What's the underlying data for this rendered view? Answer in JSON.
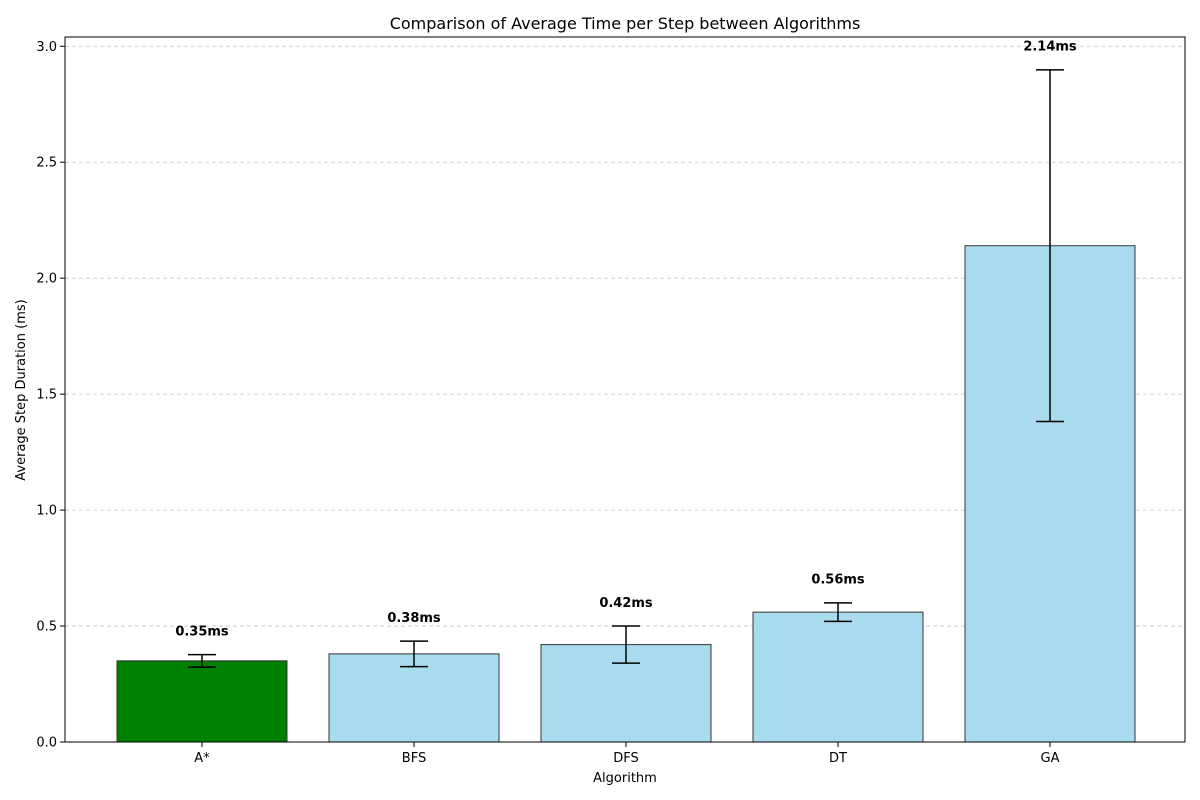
{
  "chart_data": {
    "type": "bar",
    "title": "Comparison of Average Time per Step between Algorithms",
    "xlabel": "Algorithm",
    "ylabel": "Average Step Duration (ms)",
    "categories": [
      "A*",
      "BFS",
      "DFS",
      "DT",
      "GA"
    ],
    "values": [
      0.35,
      0.38,
      0.42,
      0.56,
      2.14
    ],
    "errors": [
      0.027,
      0.055,
      0.08,
      0.04,
      0.758
    ],
    "data_labels": [
      "0.35ms",
      "0.38ms",
      "0.42ms",
      "0.56ms",
      "2.14ms"
    ],
    "ylim": [
      0,
      3.04
    ],
    "yticks": [
      0.0,
      0.5,
      1.0,
      1.5,
      2.0,
      2.5,
      3.0
    ],
    "ytick_labels": [
      "0.0",
      "0.5",
      "1.0",
      "1.5",
      "2.0",
      "2.5",
      "3.0"
    ],
    "grid": "y-dashed",
    "colors": [
      "#008000",
      "#a8dbee",
      "#a8dbee",
      "#a8dbee",
      "#a8dbee"
    ],
    "edge_color": "#333333"
  }
}
